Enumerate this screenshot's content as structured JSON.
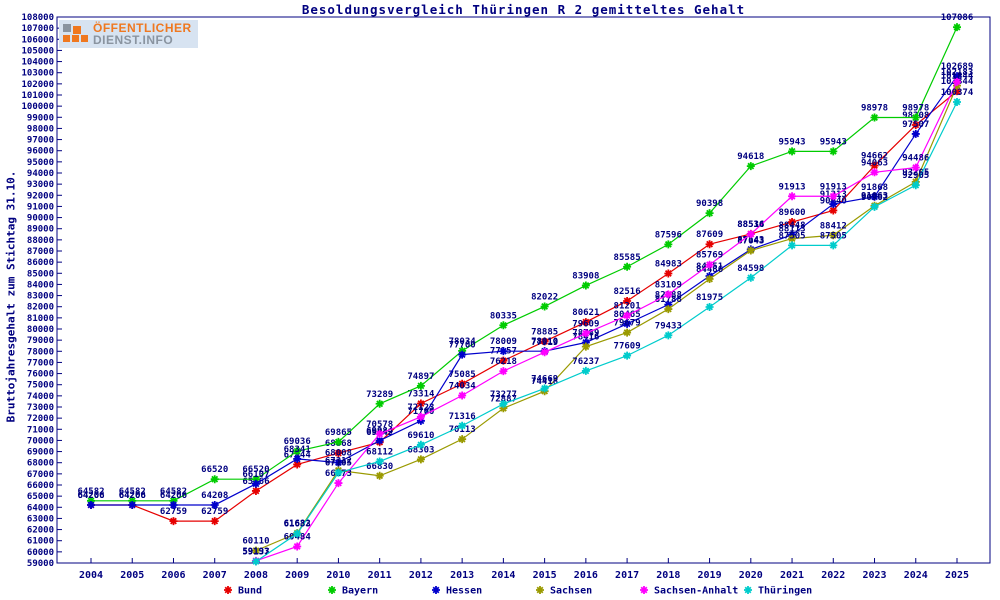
{
  "logo": {
    "line1": "ÖFFENTLICHER",
    "line2": "DIENST.INFO"
  },
  "header": {
    "title": "Besoldungsvergleich Thüringen R 2 gemitteltes Gehalt"
  },
  "axes": {
    "y_label": "Bruttojahresgehalt zum Stichtag 31.10.",
    "frame_color": "#000080",
    "text_color": "#000080"
  },
  "chart_data": {
    "type": "line",
    "title": "Besoldungsvergleich Thüringen R 2 gemitteltes Gehalt",
    "xlabel": "",
    "ylabel": "Bruttojahresgehalt zum Stichtag 31.10.",
    "x": [
      2004,
      2005,
      2006,
      2007,
      2008,
      2009,
      2010,
      2011,
      2012,
      2013,
      2014,
      2015,
      2016,
      2017,
      2018,
      2019,
      2020,
      2021,
      2022,
      2023,
      2024,
      2025
    ],
    "ylim": [
      59000,
      108000
    ],
    "ytick_step": 1000,
    "grid": false,
    "legend_position": "bottom",
    "point_labels": true,
    "series": [
      {
        "name": "Bund",
        "color": "#e60000",
        "values": [
          64206,
          64206,
          62759,
          62759,
          65466,
          67844,
          68868,
          69842,
          73314,
          75085,
          77157,
          78885,
          80621,
          82516,
          84983,
          87609,
          88534,
          89600,
          90640,
          94662,
          98308,
          101344
        ]
      },
      {
        "name": "Bayern",
        "color": "#00cc00",
        "values": [
          64582,
          64582,
          64582,
          66520,
          66520,
          69036,
          69865,
          73289,
          74897,
          78034,
          80335,
          82022,
          83908,
          85585,
          87596,
          90398,
          94618,
          95943,
          95943,
          98978,
          98978,
          107086
        ]
      },
      {
        "name": "Hessen",
        "color": "#0000cc",
        "values": [
          64206,
          64206,
          64206,
          64208,
          66107,
          68341,
          68008,
          69984,
          71760,
          77700,
          78009,
          78010,
          78789,
          80465,
          82188,
          84751,
          87143,
          88448,
          91213,
          91868,
          97507,
          102689
        ]
      },
      {
        "name": "Sachsen",
        "color": "#9a9a00",
        "values": [
          null,
          null,
          null,
          null,
          60110,
          61682,
          67312,
          66830,
          68303,
          70113,
          72887,
          74418,
          78416,
          79679,
          81788,
          84486,
          87043,
          88113,
          88412,
          91063,
          93205,
          101844
        ]
      },
      {
        "name": "Sachsen-Anhalt",
        "color": "#ff00ff",
        "values": [
          null,
          null,
          null,
          null,
          59193,
          60484,
          66173,
          70578,
          72123,
          74034,
          76218,
          77919,
          79609,
          81201,
          83109,
          85769,
          88516,
          91913,
          91913,
          94063,
          94486,
          102183
        ]
      },
      {
        "name": "Thüringen",
        "color": "#00cccc",
        "values": [
          null,
          null,
          null,
          null,
          59137,
          61633,
          67105,
          68112,
          69610,
          71316,
          73277,
          74669,
          76237,
          77609,
          79433,
          81975,
          84598,
          87505,
          87505,
          90962,
          92905,
          100374
        ]
      }
    ]
  }
}
